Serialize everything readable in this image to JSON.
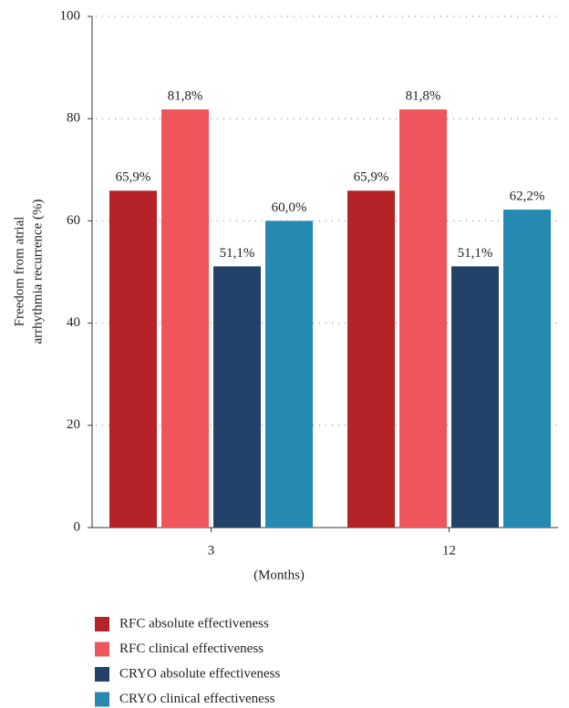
{
  "chart_data": {
    "type": "bar",
    "ylabel": [
      "Freedom from atrial",
      "arrhythmia recurrence (%)"
    ],
    "xlabel": "(Months)",
    "categories": [
      "3",
      "12"
    ],
    "series": [
      {
        "name": "RFC absolute effectiveness",
        "color": "#b52228",
        "values": [
          65.9,
          65.9
        ],
        "value_labels": [
          "65,9%",
          "65,9%"
        ]
      },
      {
        "name": "RFC clinical effectiveness",
        "color": "#ee565b",
        "values": [
          81.8,
          81.8
        ],
        "value_labels": [
          "81,8%",
          "81,8%"
        ]
      },
      {
        "name": "CRYO absolute effectiveness",
        "color": "#22426a",
        "values": [
          51.1,
          51.1
        ],
        "value_labels": [
          "51,1%",
          "51,1%"
        ]
      },
      {
        "name": "CRYO clinical effectiveness",
        "color": "#2589b2",
        "values": [
          60.0,
          62.2
        ],
        "value_labels": [
          "60,0%",
          "62,2%"
        ]
      }
    ],
    "ylim": [
      0,
      100
    ],
    "yticks": [
      0,
      20,
      40,
      60,
      80,
      100
    ],
    "grid": true,
    "legend": "bottom"
  }
}
